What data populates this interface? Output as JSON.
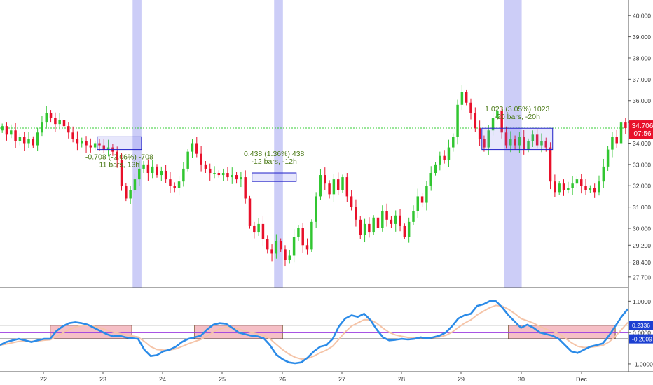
{
  "chart_data": [
    {
      "type": "candlestick",
      "title": "",
      "x_axis_labels": [
        "22",
        "23",
        "24",
        "25",
        "26",
        "27",
        "28",
        "29",
        "30",
        "Dec"
      ],
      "y_ticks": [
        "40.000",
        "39.000",
        "38.000",
        "37.000",
        "36.000",
        "35.000",
        "34.000",
        "33.000",
        "32.000",
        "31.000",
        "30.000",
        "29.200",
        "28.400",
        "27.700"
      ],
      "ylim": [
        27.3,
        40.6
      ],
      "last_price": "34.706",
      "countdown": "07:56",
      "last_price_line": 34.706,
      "colors": {
        "up": "#31c631",
        "down": "#e8102a",
        "highlight": "#c9caf7",
        "box": "#2121c8",
        "measure_text": "#4c7a18"
      },
      "closes": [
        34.8,
        34.4,
        34.6,
        34.1,
        34.3,
        34.0,
        34.2,
        33.9,
        34.5,
        35.0,
        35.4,
        35.2,
        34.9,
        35.1,
        34.8,
        34.5,
        34.2,
        34.0,
        34.1,
        33.9,
        33.8,
        34.0,
        33.9,
        33.7,
        33.8,
        33.6,
        33.2,
        32.0,
        31.4,
        31.8,
        32.3,
        32.8,
        33.0,
        32.6,
        32.9,
        32.5,
        32.7,
        32.3,
        32.0,
        31.9,
        32.2,
        32.8,
        33.6,
        34.0,
        33.5,
        33.0,
        32.8,
        32.6,
        32.6,
        32.5,
        32.6,
        32.4,
        32.5,
        32.3,
        32.4,
        31.4,
        30.1,
        29.8,
        30.2,
        29.5,
        29.0,
        28.8,
        29.4,
        29.0,
        28.5,
        28.7,
        29.6,
        30.0,
        29.2,
        29.0,
        30.3,
        31.5,
        32.5,
        32.1,
        31.6,
        32.3,
        31.8,
        32.4,
        31.5,
        31.0,
        30.4,
        29.7,
        30.2,
        29.8,
        30.5,
        30.0,
        30.8,
        30.4,
        30.2,
        30.6,
        30.1,
        29.6,
        30.3,
        30.8,
        31.5,
        31.2,
        32.0,
        32.6,
        33.0,
        33.4,
        33.2,
        33.8,
        34.3,
        35.8,
        36.4,
        35.9,
        35.4,
        34.7,
        34.2,
        33.8,
        34.6,
        35.2,
        35.5,
        34.5,
        33.9,
        34.2,
        33.9,
        34.3,
        33.7,
        34.1,
        34.4,
        33.9,
        34.1,
        33.8,
        32.2,
        31.7,
        32.1,
        31.8,
        31.9,
        32.1,
        32.3,
        32.0,
        31.8,
        31.9,
        31.7,
        32.2,
        32.9,
        33.7,
        34.3,
        34.0,
        35.0,
        34.706
      ],
      "oscillator": {
        "y_ticks": [
          "1.0000",
          "0.0000",
          "-1.0000"
        ],
        "levels": [
          {
            "label": "0.2336",
            "value": 0.2336
          },
          {
            "label": "-0.2009",
            "value": -0.2009
          }
        ],
        "zero_line": 0.0,
        "ylim": [
          -1.18,
          1.32
        ],
        "colors": {
          "main": "#2b8be8",
          "signal": "#f5c4a8",
          "levels": "#333333",
          "zero": "#9b3ce0",
          "box_fill": "#f1aab3",
          "box_border": "#7a4a2a"
        },
        "values": [
          -0.4,
          -0.3,
          -0.25,
          -0.2,
          -0.25,
          -0.3,
          -0.25,
          -0.2,
          -0.2,
          0.05,
          0.2,
          0.3,
          0.33,
          0.3,
          0.25,
          0.15,
          0.05,
          -0.05,
          -0.12,
          -0.1,
          -0.15,
          -0.18,
          -0.2,
          -0.55,
          -0.75,
          -0.72,
          -0.6,
          -0.55,
          -0.45,
          -0.3,
          -0.2,
          -0.15,
          -0.1,
          0.1,
          0.25,
          0.3,
          0.28,
          0.15,
          0.0,
          -0.05,
          -0.1,
          -0.12,
          -0.18,
          -0.4,
          -0.7,
          -0.85,
          -0.95,
          -0.98,
          -0.95,
          -0.8,
          -0.6,
          -0.45,
          -0.4,
          -0.2,
          0.2,
          0.45,
          0.55,
          0.5,
          0.6,
          0.4,
          0.1,
          -0.15,
          -0.25,
          -0.23,
          -0.2,
          -0.22,
          -0.2,
          -0.15,
          -0.18,
          -0.15,
          -0.1,
          0.0,
          0.2,
          0.45,
          0.55,
          0.6,
          0.85,
          0.9,
          1.0,
          1.0,
          0.8,
          0.55,
          0.35,
          0.15,
          0.25,
          0.15,
          0.0,
          -0.05,
          -0.1,
          -0.2,
          -0.4,
          -0.6,
          -0.65,
          -0.55,
          -0.45,
          -0.4,
          -0.35,
          -0.1,
          0.2,
          0.5,
          0.75
        ]
      },
      "highlights": [
        {
          "from_bar": 30,
          "to_bar": 31
        },
        {
          "from_bar": 62,
          "to_bar": 63
        },
        {
          "from_bar": 114,
          "to_bar": 117
        }
      ],
      "annotations": [
        {
          "line1": "-0.708 (-2.06%) -708",
          "line2": "11 bars, 13h",
          "from_bar": 22,
          "to_bar": 31,
          "price_top": 34.3,
          "price_bottom": 33.7,
          "osc_from": 8,
          "osc_to": 21
        },
        {
          "line1": "0.438 (1.36%) 438",
          "line2": "-12 bars, -12h",
          "from_bar": 57,
          "to_bar": 66,
          "price_top": 32.6,
          "price_bottom": 32.2,
          "osc_from": 31,
          "osc_to": 45
        },
        {
          "line1": "1.023 (3.05%) 1023",
          "line2": "-20 bars, -20h",
          "from_bar": 109,
          "to_bar": 124,
          "price_top": 34.7,
          "price_bottom": 33.7,
          "osc_from": 81,
          "osc_to": 98
        }
      ]
    }
  ]
}
